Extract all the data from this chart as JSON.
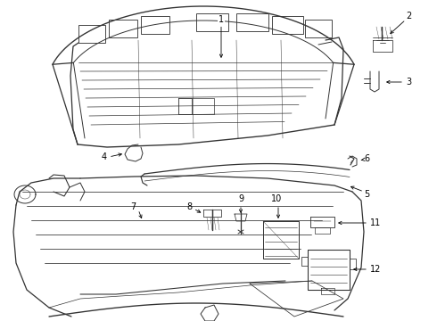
{
  "background_color": "#ffffff",
  "line_color": "#333333",
  "line_width": 0.7,
  "fig_width": 4.9,
  "fig_height": 3.6,
  "dpi": 100,
  "label_fontsize": 7.0,
  "arrow_lw": 0.6
}
